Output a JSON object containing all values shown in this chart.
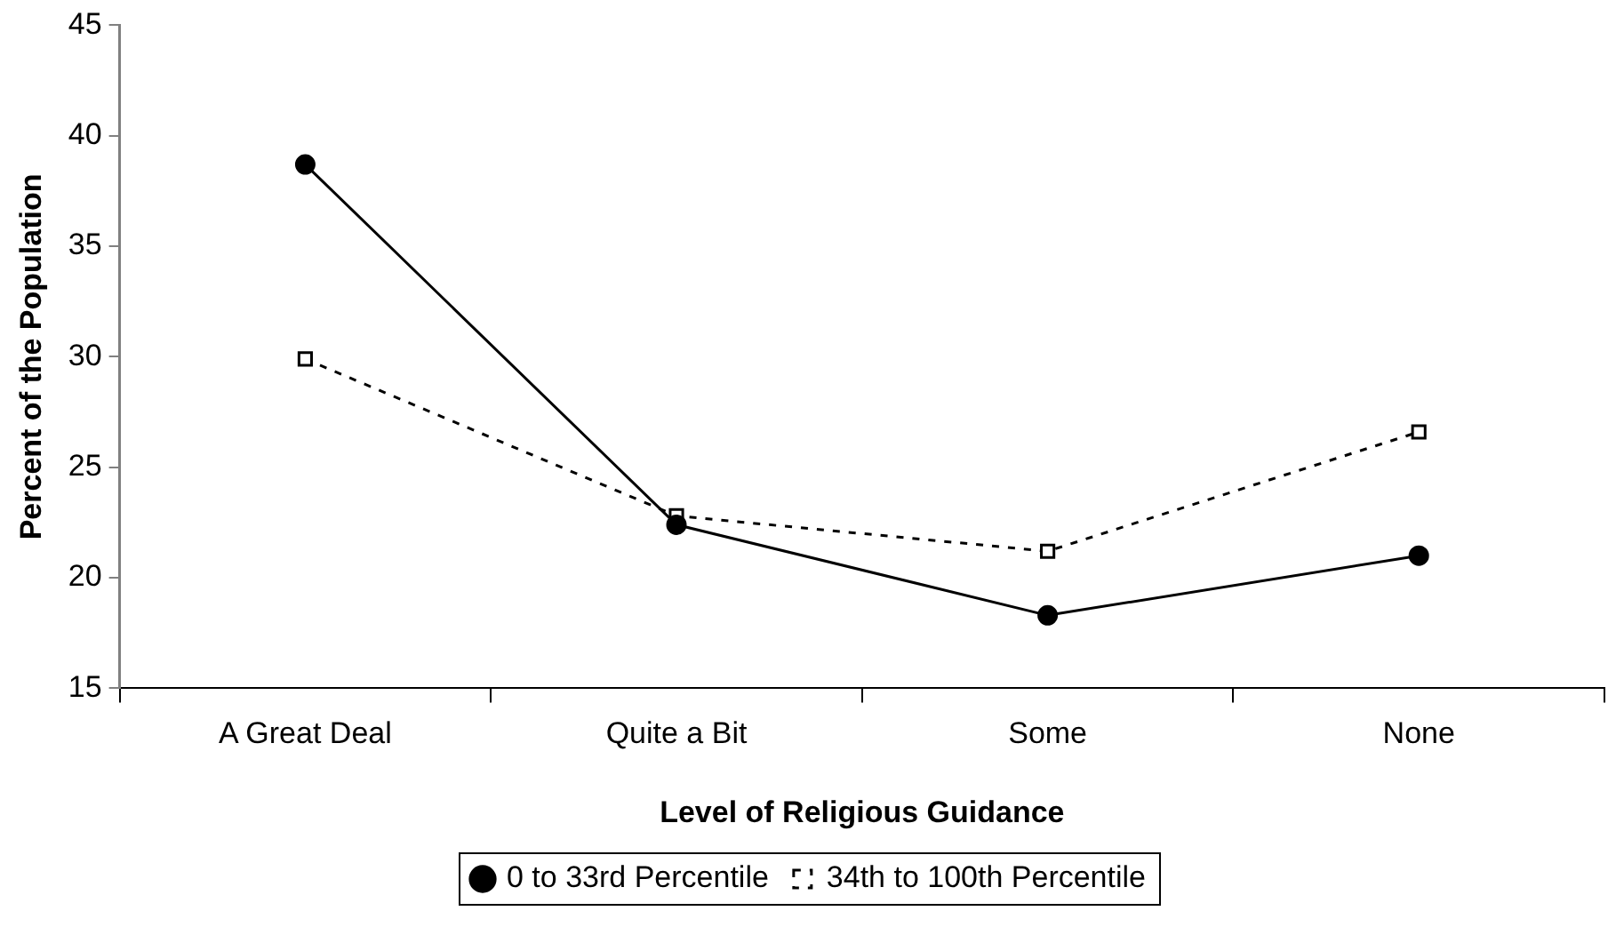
{
  "chart_data": {
    "type": "line",
    "xlabel": "Level of Religious Guidance",
    "ylabel": "Percent of the Population",
    "categories": [
      "A Great Deal",
      "Quite a Bit",
      "Some",
      "None"
    ],
    "series": [
      {
        "name": "0 to 33rd Percentile",
        "color": "#000000",
        "values": [
          38.7,
          22.4,
          18.3,
          21.0
        ],
        "marker": "circle",
        "line_style": "solid"
      },
      {
        "name": "34th to 100th Percentile",
        "color": "#000000",
        "values": [
          29.9,
          22.8,
          21.2,
          26.6
        ],
        "marker": "square",
        "line_style": "dashed"
      }
    ],
    "ylim": [
      15,
      45
    ],
    "yticks": [
      15,
      20,
      25,
      30,
      35,
      40,
      45
    ],
    "grid": false,
    "legend": "bottom"
  }
}
